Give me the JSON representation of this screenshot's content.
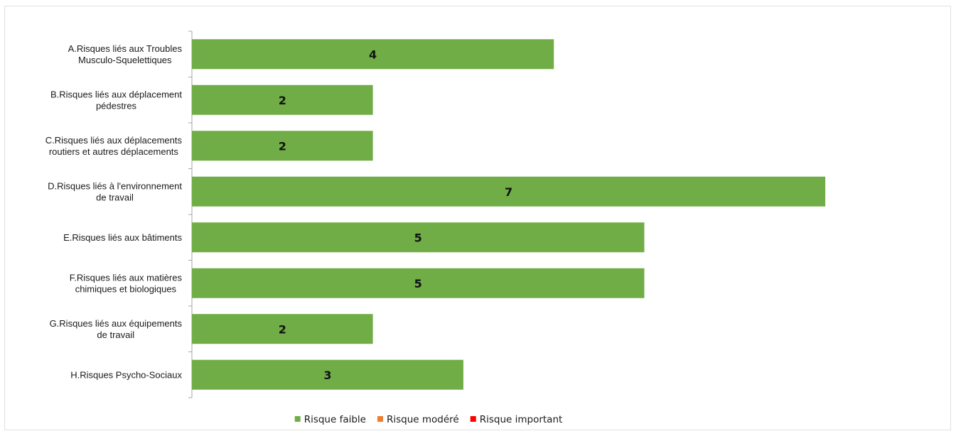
{
  "chart_data": {
    "type": "bar",
    "orientation": "horizontal",
    "stacked": true,
    "title": "",
    "xlabel": "",
    "ylabel": "",
    "xlim": [
      0,
      8
    ],
    "grid": false,
    "legend_position": "bottom",
    "categories": [
      [
        "A.Risques liés aux Troubles",
        "Musculo-Squelettiques"
      ],
      [
        "B.Risques liés aux déplacement",
        "pédestres"
      ],
      [
        "C.Risques liés aux déplacements",
        "routiers et autres déplacements"
      ],
      [
        "D.Risques liés à l'environnement",
        "de travail"
      ],
      [
        "E.Risques liés aux bâtiments"
      ],
      [
        "F.Risques liés aux matières",
        "chimiques et biologiques"
      ],
      [
        "G.Risques liés aux équipements",
        "de travail"
      ],
      [
        "H.Risques Psycho-Sociaux"
      ]
    ],
    "series": [
      {
        "name": "Risque faible",
        "color": "#70ad47",
        "values": [
          4,
          2,
          2,
          7,
          5,
          5,
          2,
          3
        ]
      },
      {
        "name": "Risque modéré",
        "color": "#ed7d31",
        "values": [
          0,
          0,
          0,
          0,
          0,
          0,
          0,
          0
        ]
      },
      {
        "name": "Risque important",
        "color": "#ff0000",
        "values": [
          0,
          0,
          0,
          0,
          0,
          0,
          0,
          0
        ]
      }
    ]
  }
}
